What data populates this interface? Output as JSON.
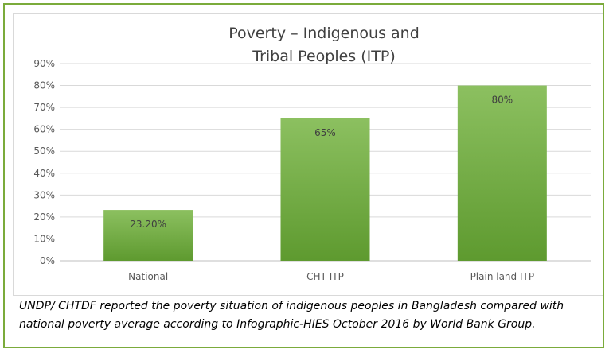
{
  "chart_data": {
    "type": "bar",
    "title_lines": [
      "Poverty – Indigenous and",
      "Tribal Peoples (ITP)"
    ],
    "categories": [
      "National",
      "CHT ITP",
      "Plain land ITP"
    ],
    "values": [
      23.2,
      65,
      80
    ],
    "data_labels": [
      "23.20%",
      "65%",
      "80%"
    ],
    "ylim": [
      0,
      90
    ],
    "yticks": [
      "0%",
      "10%",
      "20%",
      "30%",
      "40%",
      "50%",
      "60%",
      "70%",
      "80%",
      "90%"
    ],
    "grid": true,
    "bar_color": "#70ad47"
  },
  "caption": "UNDP/ CHTDF reported the poverty situation of indigenous peoples in Bangladesh compared with national poverty average according to Infographic-HIES October 2016 by World Bank Group."
}
